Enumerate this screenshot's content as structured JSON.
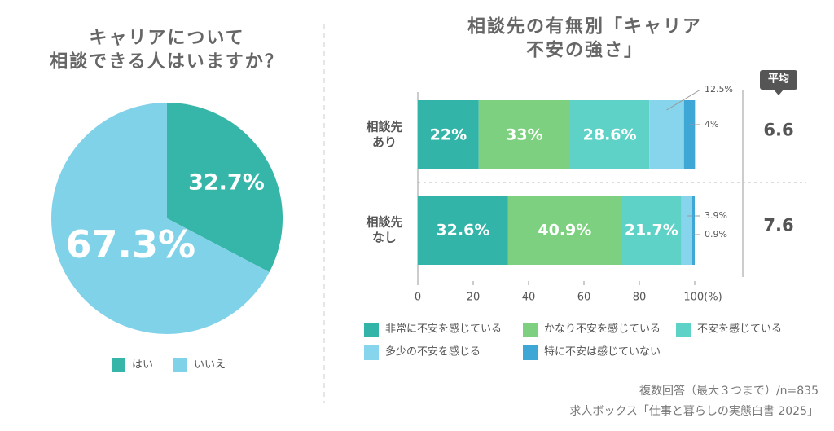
{
  "chart_data": [
    {
      "type": "pie",
      "title": "キャリアについて\n相談できる人はいますか？",
      "categories": [
        "はい",
        "いいえ"
      ],
      "values": [
        32.7,
        67.3
      ],
      "value_labels": [
        "32.7%",
        "67.3%"
      ],
      "colors": [
        "#36b5a9",
        "#80d2e9"
      ]
    },
    {
      "type": "bar",
      "orientation": "horizontal",
      "stacked": true,
      "title": "相談先の有無別「キャリア不安の強さ」",
      "categories": [
        "相談先\nあり",
        "相談先\nなし"
      ],
      "series": [
        {
          "name": "非常に不安を感じている",
          "color": "#32b4a8",
          "values": [
            22,
            32.6
          ],
          "value_labels": [
            "22%",
            "32.6%"
          ]
        },
        {
          "name": "かなり不安を感じている",
          "color": "#7dd07f",
          "values": [
            33,
            40.9
          ],
          "value_labels": [
            "33%",
            "40.9%"
          ]
        },
        {
          "name": "不安を感じている",
          "color": "#5fd2c7",
          "values": [
            28.6,
            21.7
          ],
          "value_labels": [
            "28.6%",
            "21.7%"
          ]
        },
        {
          "name": "多少の不安を感じる",
          "color": "#86d5ec",
          "values": [
            12.5,
            3.9
          ],
          "value_labels": [
            "12.5%",
            "3.9%"
          ]
        },
        {
          "name": "特に不安は感じていない",
          "color": "#3ea7d6",
          "values": [
            4,
            0.9
          ],
          "value_labels": [
            "4%",
            "0.9%"
          ]
        }
      ],
      "xlim": [
        0,
        100
      ],
      "xticks": [
        0,
        20,
        40,
        60,
        80,
        {
          "value": 100,
          "label": "100(%)"
        }
      ],
      "average": {
        "label": "平均",
        "values": [
          "6.6",
          "7.6"
        ]
      }
    }
  ],
  "footer": [
    "複数回答（最大３つまで）/n=835",
    "求人ボックス「仕事と暮らしの実態白書 2025」"
  ]
}
